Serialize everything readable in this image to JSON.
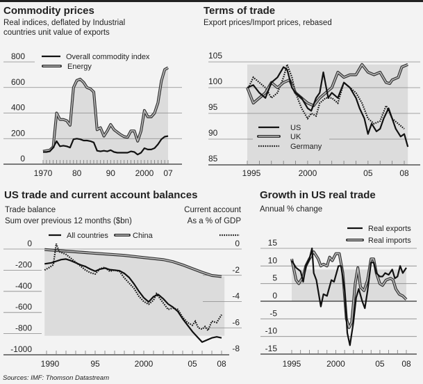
{
  "chart_data": [
    {
      "type": "line",
      "title": "Commodity prices",
      "subtitle": [
        "Real indices, deflated by Industrial",
        "countries unit value of exports"
      ],
      "ylim": [
        0,
        800
      ],
      "yticks": [
        "0",
        "200",
        "400",
        "600",
        "800"
      ],
      "xticks": [
        "1970",
        "80",
        "90",
        "2000",
        "07"
      ],
      "grid": true,
      "legend_placement": "top-left",
      "series": [
        {
          "name": "Overall commodity index",
          "style": "solid",
          "x": [
            1970,
            1971,
            1972,
            1973,
            1974,
            1975,
            1976,
            1977,
            1978,
            1979,
            1980,
            1981,
            1982,
            1983,
            1984,
            1985,
            1986,
            1987,
            1988,
            1989,
            1990,
            1991,
            1992,
            1993,
            1994,
            1995,
            1996,
            1997,
            1998,
            1999,
            2000,
            2001,
            2002,
            2003,
            2004,
            2005,
            2006,
            2007
          ],
          "y": [
            95,
            95,
            100,
            130,
            180,
            140,
            145,
            140,
            130,
            195,
            200,
            195,
            185,
            185,
            180,
            170,
            105,
            100,
            105,
            100,
            110,
            95,
            90,
            90,
            90,
            90,
            100,
            95,
            75,
            90,
            125,
            115,
            115,
            125,
            155,
            195,
            215,
            220
          ]
        },
        {
          "name": "Energy",
          "style": "double",
          "x": [
            1970,
            1971,
            1972,
            1973,
            1974,
            1975,
            1976,
            1977,
            1978,
            1979,
            1980,
            1981,
            1982,
            1983,
            1984,
            1985,
            1986,
            1987,
            1988,
            1989,
            1990,
            1991,
            1992,
            1993,
            1994,
            1995,
            1996,
            1997,
            1998,
            1999,
            2000,
            2001,
            2002,
            2003,
            2004,
            2005,
            2006,
            2007
          ],
          "y": [
            100,
            105,
            110,
            135,
            400,
            350,
            350,
            340,
            305,
            600,
            655,
            665,
            640,
            600,
            590,
            565,
            270,
            285,
            220,
            260,
            310,
            270,
            250,
            230,
            215,
            210,
            260,
            260,
            180,
            260,
            420,
            370,
            370,
            400,
            480,
            650,
            740,
            755
          ]
        }
      ]
    },
    {
      "type": "line",
      "title": "Terms of trade",
      "subtitle": [
        "Export prices/Import prices, rebased"
      ],
      "ylim": [
        85,
        105
      ],
      "yticks": [
        "85",
        "90",
        "95",
        "100",
        "105"
      ],
      "xticks": [
        "1995",
        "2000",
        "05",
        "08"
      ],
      "grid": true,
      "legend_placement": "bottom-left",
      "series": [
        {
          "name": "US",
          "style": "solid",
          "x": [
            1995,
            1995.5,
            1996,
            1996.5,
            1997,
            1997.5,
            1998,
            1998.3,
            1998.7,
            1999,
            1999.5,
            2000,
            2000.3,
            2000.7,
            2001,
            2001.3,
            2001.7,
            2002,
            2002.5,
            2003,
            2003.5,
            2004,
            2004.3,
            2004.7,
            2005,
            2005.3,
            2005.7,
            2006,
            2006.3,
            2006.7,
            2007,
            2007.3,
            2007.7,
            2008,
            2008.3
          ],
          "y": [
            100,
            100.5,
            99,
            98,
            101,
            102,
            104,
            103.5,
            100,
            99,
            98,
            96,
            95.5,
            98,
            99,
            103,
            98,
            99,
            98,
            101,
            100,
            98,
            96,
            94,
            91,
            93,
            91.5,
            92,
            94,
            96,
            94,
            92,
            90.5,
            91,
            88.5
          ]
        },
        {
          "name": "UK",
          "style": "double",
          "x": [
            1995,
            1995.5,
            1996,
            1996.5,
            1997,
            1997.5,
            1998,
            1998.5,
            1999,
            1999.5,
            2000,
            2000.5,
            2001,
            2001.5,
            2002,
            2002.5,
            2003,
            2003.5,
            2004,
            2004.5,
            2005,
            2005.5,
            2006,
            2006.5,
            2006.8,
            2007,
            2007.5,
            2007.8,
            2008.3
          ],
          "y": [
            100,
            97,
            98,
            99,
            101,
            100,
            101,
            101.5,
            99,
            98,
            97,
            96.5,
            98,
            99,
            100,
            103,
            102,
            102.5,
            102.5,
            104.5,
            103,
            102.5,
            103,
            101,
            100.8,
            101.5,
            102,
            104,
            104.5
          ]
        },
        {
          "name": "Germany",
          "style": "dotted",
          "x": [
            1995,
            1995.5,
            1996,
            1996.5,
            1997,
            1997.5,
            1998,
            1998.3,
            1998.7,
            1999,
            1999.5,
            2000,
            2000.3,
            2000.7,
            2001,
            2001.5,
            2002,
            2002.5,
            2003,
            2003.5,
            2004,
            2004.5,
            2005,
            2005.5,
            2006,
            2006.5,
            2007,
            2007.5,
            2008
          ],
          "y": [
            99.5,
            102,
            101,
            100,
            98,
            99,
            102,
            104.5,
            102,
            99,
            96,
            94,
            95,
            94.5,
            97,
            98,
            98,
            97,
            101,
            100,
            99,
            97,
            94,
            93,
            93.5,
            96.5,
            94,
            93,
            92
          ]
        }
      ]
    },
    {
      "type": "line",
      "title": "US trade and current account balances",
      "left_axis_label": [
        "Trade balance",
        "Sum over previous 12 months ($bn)"
      ],
      "right_axis_label": [
        "Current account",
        "As a % of GDP"
      ],
      "ylim": [
        -1000,
        0
      ],
      "y2lim": [
        -8,
        0
      ],
      "yticks": [
        "0",
        "-200",
        "-400",
        "-600",
        "-800",
        "-1000"
      ],
      "y2ticks": [
        "0",
        "-2",
        "-4",
        "-6",
        "-8"
      ],
      "xticks": [
        "1990",
        "95",
        "2000",
        "05",
        "08"
      ],
      "grid": true,
      "legend_placement": "top",
      "series": [
        {
          "name": "All countries",
          "style": "solid",
          "axis": "left",
          "x": [
            1989.8,
            1990.5,
            1991,
            1991.5,
            1992,
            1992.5,
            1993,
            1993.5,
            1994,
            1994.5,
            1995,
            1995.5,
            1996,
            1996.5,
            1997,
            1997.5,
            1998,
            1998.5,
            1999,
            1999.5,
            2000,
            2000.5,
            2001,
            2001.5,
            2002,
            2002.5,
            2003,
            2003.5,
            2004,
            2004.5,
            2005,
            2005.5,
            2006,
            2006.5,
            2007,
            2007.5,
            2008
          ],
          "y": [
            -140,
            -130,
            -115,
            -100,
            -95,
            -110,
            -130,
            -150,
            -165,
            -190,
            -210,
            -190,
            -180,
            -195,
            -200,
            -205,
            -230,
            -270,
            -330,
            -400,
            -460,
            -500,
            -450,
            -430,
            -470,
            -520,
            -550,
            -590,
            -660,
            -720,
            -780,
            -830,
            -880,
            -860,
            -840,
            -830,
            -840
          ]
        },
        {
          "name": "China",
          "style": "double",
          "axis": "left",
          "x": [
            1989.8,
            1992,
            1995,
            1998,
            2000,
            2002,
            2003,
            2004,
            2005,
            2006,
            2007,
            2008
          ],
          "y": [
            -5,
            -20,
            -40,
            -60,
            -80,
            -100,
            -120,
            -150,
            -185,
            -220,
            -250,
            -260
          ]
        },
        {
          "name": "Current account",
          "style": "dotted",
          "axis": "right",
          "x": [
            1989.8,
            1990.3,
            1990.7,
            1991,
            1991.3,
            1992,
            1993,
            1994,
            1994.5,
            1995,
            1995.5,
            1996,
            1996.5,
            1997,
            1997.5,
            1998,
            1998.5,
            1999,
            1999.5,
            2000,
            2000.5,
            2001,
            2001.3,
            2001.7,
            2002,
            2002.5,
            2003,
            2003.5,
            2004,
            2004.5,
            2005,
            2005.3,
            2005.6,
            2006,
            2006.3,
            2006.6,
            2007,
            2007.5,
            2008
          ],
          "y": [
            -1.6,
            -1.4,
            -1.2,
            0.4,
            -0.2,
            -0.4,
            -1.0,
            -1.6,
            -1.8,
            -1.9,
            -1.5,
            -1.4,
            -1.7,
            -1.6,
            -1.7,
            -2.2,
            -2.6,
            -3.0,
            -3.6,
            -4.0,
            -4.2,
            -3.9,
            -3.4,
            -3.8,
            -4.1,
            -4.6,
            -4.5,
            -4.6,
            -5.2,
            -5.6,
            -5.8,
            -5.5,
            -6.0,
            -6.1,
            -5.9,
            -6.2,
            -5.5,
            -5.6,
            -5.0
          ]
        }
      ]
    },
    {
      "type": "line",
      "title": "Growth in US real trade",
      "subtitle": [
        "Annual % change"
      ],
      "ylim": [
        -15,
        15
      ],
      "yticks": [
        "15",
        "10",
        "5",
        "0",
        "-5",
        "-10",
        "-15"
      ],
      "xticks": [
        "1995",
        "2000",
        "05",
        "08"
      ],
      "grid": true,
      "legend_placement": "top-right",
      "series": [
        {
          "name": "Real exports",
          "style": "solid",
          "x": [
            1995,
            1995.5,
            1996,
            1996.3,
            1996.6,
            1997,
            1997.3,
            1997.5,
            1997.8,
            1998.3,
            1998.6,
            1999,
            1999.5,
            1999.8,
            2000.3,
            2000.6,
            2001,
            2001.3,
            2001.6,
            2002,
            2002.3,
            2002.6,
            2003,
            2003.3,
            2003.6,
            2004,
            2004.3,
            2004.6,
            2005,
            2005.3,
            2005.6,
            2006,
            2006.4,
            2006.7,
            2007,
            2007.3,
            2007.6,
            2008
          ],
          "y": [
            11.5,
            9.5,
            8.5,
            5.5,
            10,
            12,
            15,
            8,
            6,
            -1.5,
            2,
            1.5,
            6,
            5.5,
            10,
            10,
            3,
            -9,
            -12.5,
            -6,
            1,
            3.5,
            0,
            -2,
            3,
            11,
            11,
            8,
            7,
            7,
            8,
            7.5,
            9,
            6.5,
            7,
            10,
            8,
            9.5
          ]
        },
        {
          "name": "Real imports",
          "style": "double",
          "x": [
            1995,
            1995.5,
            1995.8,
            1996.3,
            1996.6,
            1997,
            1997.5,
            1998,
            1998.3,
            1998.6,
            1999,
            1999.3,
            1999.6,
            2000,
            2000.4,
            2000.8,
            2001.2,
            2001.5,
            2001.8,
            2002.2,
            2002.5,
            2002.8,
            2003.2,
            2003.6,
            2004,
            2004.3,
            2004.6,
            2005,
            2005.3,
            2005.7,
            2006.2,
            2006.5,
            2006.8,
            2007.2,
            2007.6,
            2008
          ],
          "y": [
            12,
            6,
            5,
            7,
            10,
            12,
            14,
            12,
            10,
            10.5,
            10,
            12.5,
            11.5,
            13.5,
            13.5,
            8,
            -5,
            -7.5,
            -6,
            5,
            9.5,
            4,
            3,
            6,
            12,
            12,
            8,
            5,
            4.5,
            6,
            6.5,
            6,
            3.5,
            2,
            1.5,
            0.5
          ]
        }
      ]
    }
  ],
  "source": "Sources: IMF: Thomson Datastream",
  "colors": {
    "background": "#f3f3f3",
    "shade": "#dcdcdc",
    "line": "#111111",
    "double_inner": "#bdbdbd",
    "grid": "#888888"
  }
}
